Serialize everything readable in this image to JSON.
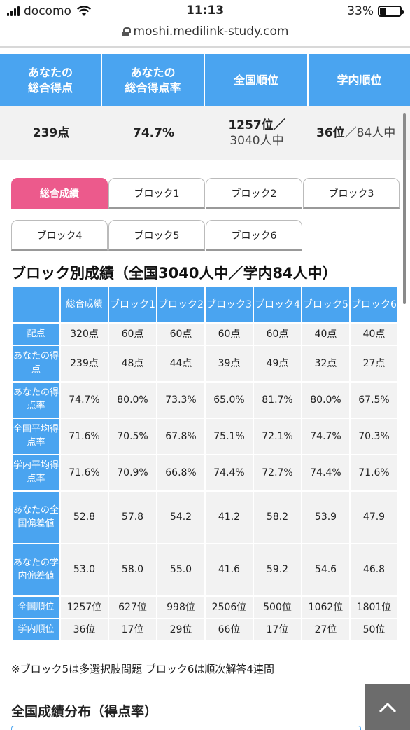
{
  "status": {
    "carrier": "docomo",
    "time": "11:13",
    "battery": "33%"
  },
  "url": "moshi.medilink-study.com",
  "summary": {
    "headers": [
      "あなたの\n総合得点",
      "あなたの\n総合得点率",
      "全国順位",
      "学内順位"
    ],
    "score": "239点",
    "rate": "74.7%",
    "national_rank": "1257位／",
    "national_total": "3040人中",
    "school_rank": "36位",
    "school_total": "／84人中"
  },
  "tabs": [
    "総合成績",
    "ブロック1",
    "ブロック2",
    "ブロック3",
    "ブロック4",
    "ブロック5",
    "ブロック6"
  ],
  "section_title": "ブロック別成績（全国3040人中／学内84人中）",
  "table": {
    "columns": [
      "総合成績",
      "ブロック1",
      "ブロック2",
      "ブロック3",
      "ブロック4",
      "ブロック5",
      "ブロック6"
    ],
    "rows": [
      {
        "label": "配点",
        "values": [
          "320点",
          "60点",
          "60点",
          "60点",
          "60点",
          "40点",
          "40点"
        ]
      },
      {
        "label": "あなたの得点",
        "values": [
          "239点",
          "48点",
          "44点",
          "39点",
          "49点",
          "32点",
          "27点"
        ]
      },
      {
        "label": "あなたの得点率",
        "values": [
          "74.7%",
          "80.0%",
          "73.3%",
          "65.0%",
          "81.7%",
          "80.0%",
          "67.5%"
        ]
      },
      {
        "label": "全国平均得点率",
        "values": [
          "71.6%",
          "70.5%",
          "67.8%",
          "75.1%",
          "72.1%",
          "74.7%",
          "70.3%"
        ]
      },
      {
        "label": "学内平均得点率",
        "values": [
          "71.6%",
          "70.9%",
          "66.8%",
          "74.4%",
          "72.7%",
          "74.4%",
          "71.6%"
        ]
      },
      {
        "label": "あなたの全国偏差値",
        "values": [
          "52.8",
          "57.8",
          "54.2",
          "41.2",
          "58.2",
          "53.9",
          "47.9"
        ]
      },
      {
        "label": "あなたの学内偏差値",
        "values": [
          "53.0",
          "58.0",
          "55.0",
          "41.6",
          "59.2",
          "54.6",
          "46.8"
        ]
      },
      {
        "label": "全国順位",
        "values": [
          "1257位",
          "627位",
          "998位",
          "2506位",
          "500位",
          "1062位",
          "1801位"
        ]
      },
      {
        "label": "学内順位",
        "values": [
          "36位",
          "17位",
          "29位",
          "66位",
          "17位",
          "27位",
          "50位"
        ]
      }
    ]
  },
  "note": "※ブロック5は多選択肢問題 ブロック6は順次解答4連問",
  "distribution_title": "全国成績分布（得点率）",
  "colors": {
    "header_blue": "#4aa4f0",
    "active_tab_pink": "#ec5a8c",
    "cell_gray": "#f2f2f2"
  }
}
